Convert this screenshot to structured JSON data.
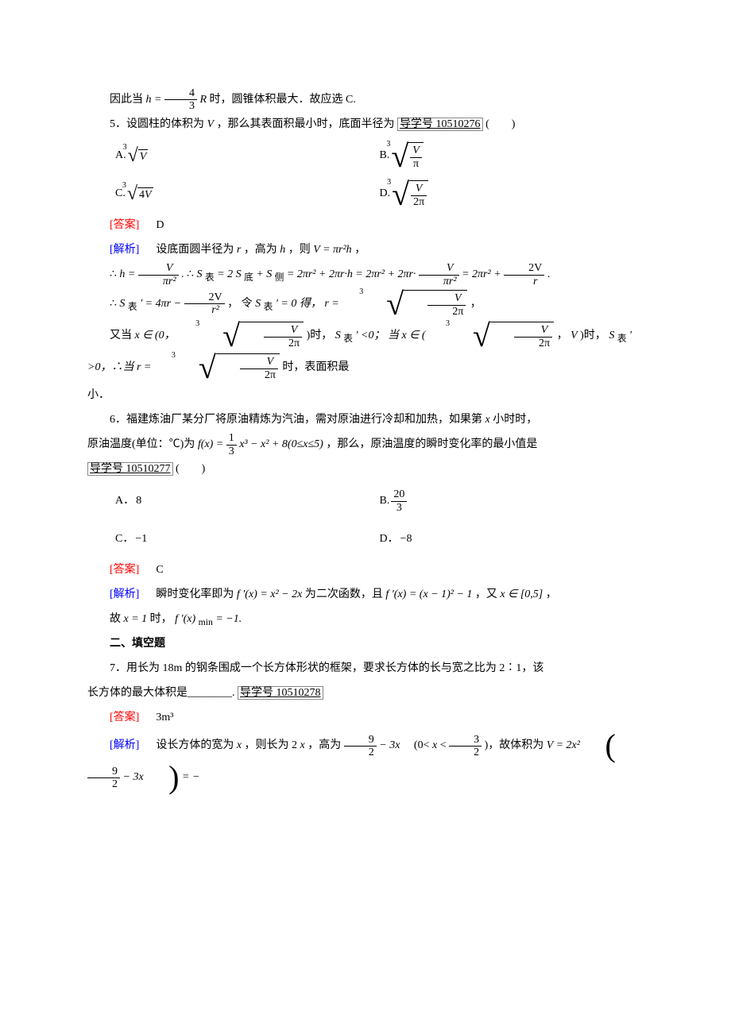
{
  "line_top": {
    "prefix": "因此当 ",
    "h_eq": "h",
    "eq_sign": " = ",
    "frac_num": "4",
    "frac_den": "3",
    "R": "R",
    "suffix": " 时，圆锥体积最大．故应选 C."
  },
  "q5": {
    "stem_a": "5．设圆柱的体积为 ",
    "V": "V",
    "stem_b": "，那么其表面积最小时，底面半径为",
    "link": "导学号 10510276",
    "paren": "(　　)",
    "opts": {
      "A_label": "A.",
      "A_rad": "V",
      "B_label": "B.",
      "B_num": "V",
      "B_den": "π",
      "C_label": "C.",
      "C_rad": "4V",
      "D_label": "D.",
      "D_num": "V",
      "D_den": "2π"
    },
    "ans_label": "[答案]",
    "ans": "D",
    "exp_label": "[解析]",
    "exp1_a": "设底面圆半径为 ",
    "exp1_r": "r",
    "exp1_b": "，高为 ",
    "exp1_h": "h",
    "exp1_c": "，则 ",
    "exp1_d": "V = πr²h",
    "exp1_e": "，",
    "line2_a": "∴",
    "line2_heq": "h = ",
    "line2_frac1_num": "V",
    "line2_frac1_den": "πr²",
    "line2_b": ". ∴",
    "line2_S": "S",
    "line2_sub_biao": "表",
    "line2_c": " = 2",
    "line2_sub_di": "底",
    "line2_d": " + ",
    "line2_sub_ce": "侧",
    "line2_e": " = 2πr² + 2πr·h = 2πr² + 2πr·",
    "line2_frac2_num": "V",
    "line2_frac2_den": "πr²",
    "line2_f": " = 2πr² + ",
    "line2_frac3_num": "2V",
    "line2_frac3_den": "r",
    "line2_g": ".",
    "line3_a": "∴",
    "line3_b": "′ = 4πr − ",
    "line3_frac_num": "2V",
    "line3_frac_den": "r²",
    "line3_c": "， 令 ",
    "line3_d": "′ = 0 得，",
    "line3_e": "r = ",
    "line3_rad_num": "V",
    "line3_rad_den": "2π",
    "line3_f": "，",
    "line4_a": "又当 ",
    "line4_x": "x",
    "line4_b": " ∈ (0，",
    "line4_rad1_num": "V",
    "line4_rad1_den": "2π",
    "line4_c": ")时，",
    "line4_d": "′ <0； 当 ",
    "line4_e": " ∈ (",
    "line4_rad2_num": "V",
    "line4_rad2_den": "2π",
    "line4_f": "，",
    "line4_V": "V",
    "line4_g": ")时，",
    "line4_h": "′ >0，∴当 ",
    "line4_i": "r = ",
    "line4_rad3_num": "V",
    "line4_rad3_den": "2π",
    "line4_j": "时，表面积最",
    "line4_tail": "小．"
  },
  "q6": {
    "stem_a": "6．福建炼油厂某分厂将原油精炼为汽油，需对原油进行冷却和加热，如果第 ",
    "x": "x",
    "stem_b": " 小时时，",
    "stem_c": "原油温度(单位：℃)为 ",
    "fx": "f(x) = ",
    "frac_num": "1",
    "frac_den": "3",
    "stem_d": "x³ − x² + 8(0≤x≤5)",
    "stem_e": "，那么，原油温度的瞬时变化率的最小值是",
    "link": "导学号 10510277",
    "paren": "(　　)",
    "opts": {
      "A_label": "A．",
      "A_val": "8",
      "B_label": "B.",
      "B_num": "20",
      "B_den": "3",
      "C_label": "C．",
      "C_val": "−1",
      "D_label": "D．",
      "D_val": "−8"
    },
    "ans_label": "[答案]",
    "ans": "C",
    "exp_label": "[解析]",
    "exp_a": "瞬时变化率即为 ",
    "exp_b": "f ′(x) = x² − 2x",
    "exp_c": " 为二次函数，且 ",
    "exp_d": "f ′(x) = (x − 1)² − 1",
    "exp_e": "，又 ",
    "exp_f": "x ∈ [0,5]",
    "exp_g": "，",
    "exp_h": "故 ",
    "exp_i": "x = 1",
    "exp_j": " 时，",
    "exp_k": "f ′(x)",
    "exp_min": "min",
    "exp_l": " = −1."
  },
  "section2": "二、填空题",
  "q7": {
    "stem_a": "7．用长为 18m 的钢条围成一个长方体形状的框架，要求长方体的长与宽之比为 2∶1，该",
    "stem_b": "长方体的最大体积是________.",
    "link": "导学号 10510278",
    "ans_label": "[答案]",
    "ans": "3m³",
    "exp_label": "[解析]",
    "exp_a": "设长方体的宽为 ",
    "x": "x",
    "exp_b": "，则长为 2",
    "exp_c": "，高为",
    "frac1_num": "9",
    "frac1_den": "2",
    "exp_d": " − 3x",
    "exp_e": "　(0<",
    "exp_f": "<",
    "frac2_num": "3",
    "frac2_den": "2",
    "exp_g": ")，故体积为 ",
    "exp_h": "V = 2x²",
    "frac3_num": "9",
    "frac3_den": "2",
    "exp_i": " − 3x",
    "exp_j": " = −"
  },
  "colors": {
    "red": "#ff0000",
    "blue": "#0000ff",
    "text": "#000000",
    "bg": "#ffffff"
  }
}
